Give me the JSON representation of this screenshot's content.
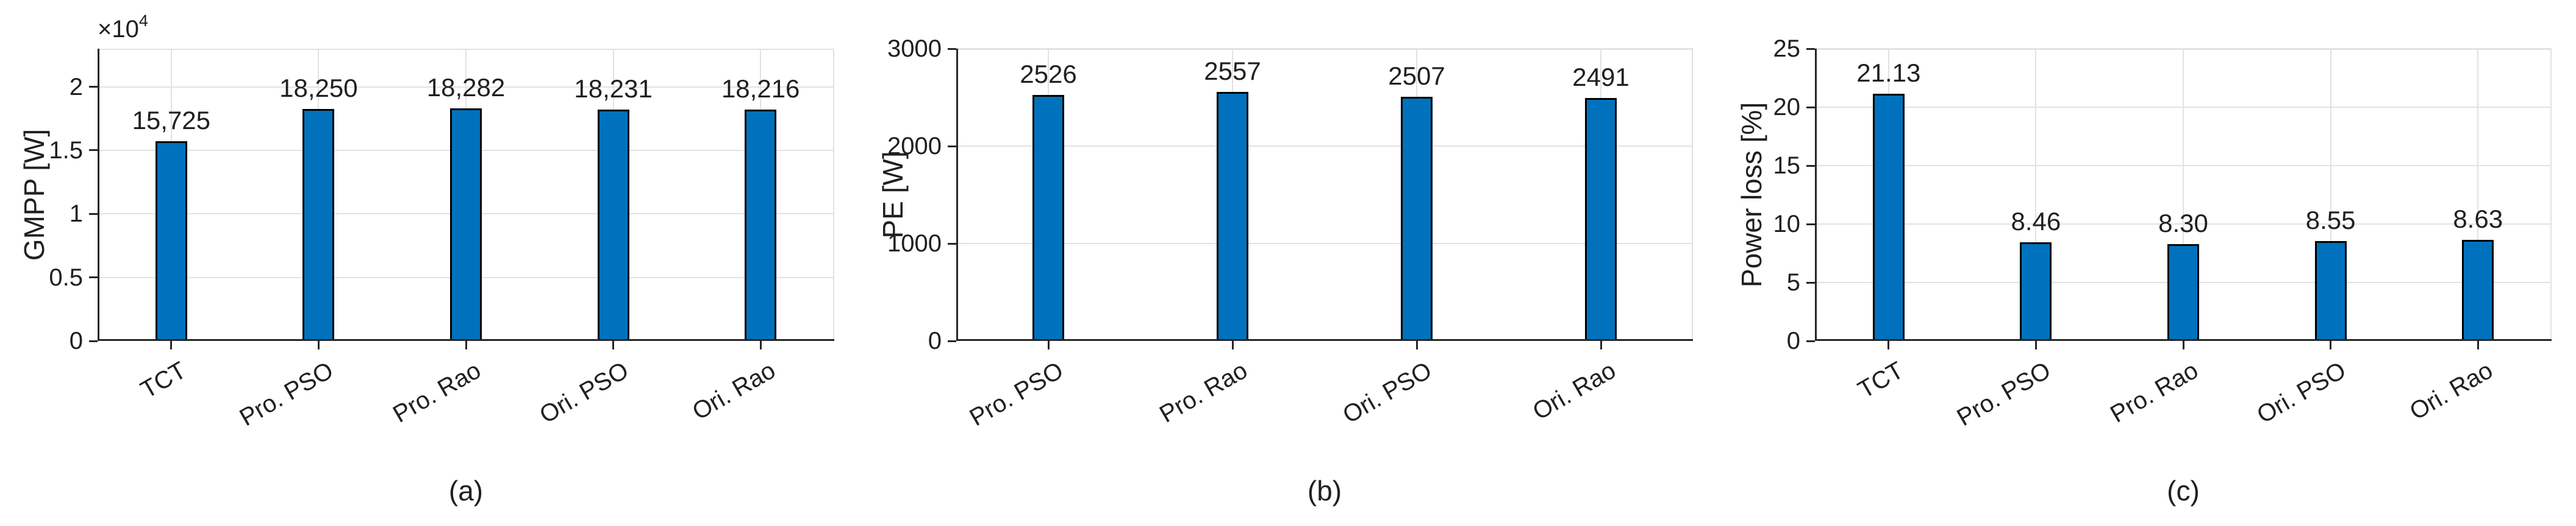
{
  "figure": {
    "background_color": "#ffffff",
    "bar_fill_color": "#0072BD",
    "bar_edge_color": "#000000",
    "grid_color": "#E2E2E2",
    "axis_line_color": "#262626",
    "text_color": "#202020"
  },
  "chart_data": [
    {
      "type": "bar",
      "subplot_caption": "(a)",
      "ylabel": "GMPP [W]",
      "xlabel": "",
      "y_exponent_base": "×10",
      "y_exponent": "4",
      "categories": [
        "TCT",
        "Pro. PSO",
        "Pro. Rao",
        "Ori. PSO",
        "Ori. Rao"
      ],
      "values": [
        15725,
        18250,
        18282,
        18231,
        18216
      ],
      "value_labels": [
        "15,725",
        "18,250",
        "18,282",
        "18,231",
        "18,216"
      ],
      "yticks": [
        0,
        5000,
        10000,
        15000,
        20000
      ],
      "ytick_labels": [
        "0",
        "0.5",
        "1",
        "1.5",
        "2"
      ],
      "ylim": [
        0,
        23000
      ],
      "grid": "on",
      "legend": "none"
    },
    {
      "type": "bar",
      "subplot_caption": "(b)",
      "ylabel": "PE [W]",
      "xlabel": "",
      "y_exponent_base": "",
      "y_exponent": "",
      "categories": [
        "Pro. PSO",
        "Pro. Rao",
        "Ori. PSO",
        "Ori. Rao"
      ],
      "values": [
        2526,
        2557,
        2507,
        2491
      ],
      "value_labels": [
        "2526",
        "2557",
        "2507",
        "2491"
      ],
      "yticks": [
        0,
        1000,
        2000,
        3000
      ],
      "ytick_labels": [
        "0",
        "1000",
        "2000",
        "3000"
      ],
      "ylim": [
        0,
        3000
      ],
      "grid": "on",
      "legend": "none"
    },
    {
      "type": "bar",
      "subplot_caption": "(c)",
      "ylabel": "Power loss [%]",
      "xlabel": "",
      "y_exponent_base": "",
      "y_exponent": "",
      "categories": [
        "TCT",
        "Pro. PSO",
        "Pro. Rao",
        "Ori. PSO",
        "Ori. Rao"
      ],
      "values": [
        21.13,
        8.46,
        8.3,
        8.55,
        8.63
      ],
      "value_labels": [
        "21.13",
        "8.46",
        "8.30",
        "8.55",
        "8.63"
      ],
      "yticks": [
        0,
        5,
        10,
        15,
        20,
        25
      ],
      "ytick_labels": [
        "0",
        "5",
        "10",
        "15",
        "20",
        "25"
      ],
      "ylim": [
        0,
        25
      ],
      "grid": "on",
      "legend": "none"
    }
  ]
}
